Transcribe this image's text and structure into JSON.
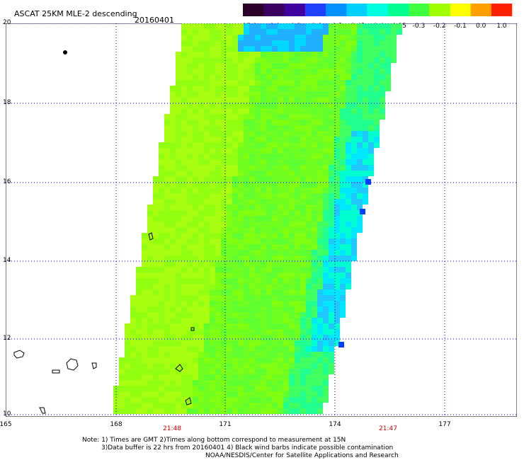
{
  "title": "ASCAT 25KM MLE-2 descending",
  "date": "20160401",
  "colorbar": {
    "labels": [
      "-15.0",
      "-1.0",
      "-0.8",
      "-0.6",
      "-0.5",
      "-0.45",
      "-0.4",
      "-0.35",
      "-0.3",
      "-0.2",
      "-0.1",
      "0.0",
      "1.0"
    ],
    "colors": [
      "#2a0028",
      "#3a0060",
      "#4000a0",
      "#2040ff",
      "#0090ff",
      "#00d0ff",
      "#00ffe0",
      "#00ff90",
      "#40ff40",
      "#a0ff00",
      "#ffff00",
      "#ffa000",
      "#ff2000"
    ]
  },
  "axes": {
    "lat_labels": [
      "20",
      "18",
      "16",
      "14",
      "12",
      "10"
    ],
    "lon_labels": [
      "165",
      "168",
      "171",
      "174",
      "177"
    ],
    "times": [
      "21:48",
      "21:47"
    ]
  },
  "notes": {
    "line1": "Note: 1) Times are GMT 2)Times along bottom correspond to measurement at 15N",
    "line2": "3)Data buffer is 22 hrs from 20160401 4) Black wind barbs indicate possible contamination",
    "line3": "NOAA/NESDIS/Center for Satellite Applications and Research"
  }
}
